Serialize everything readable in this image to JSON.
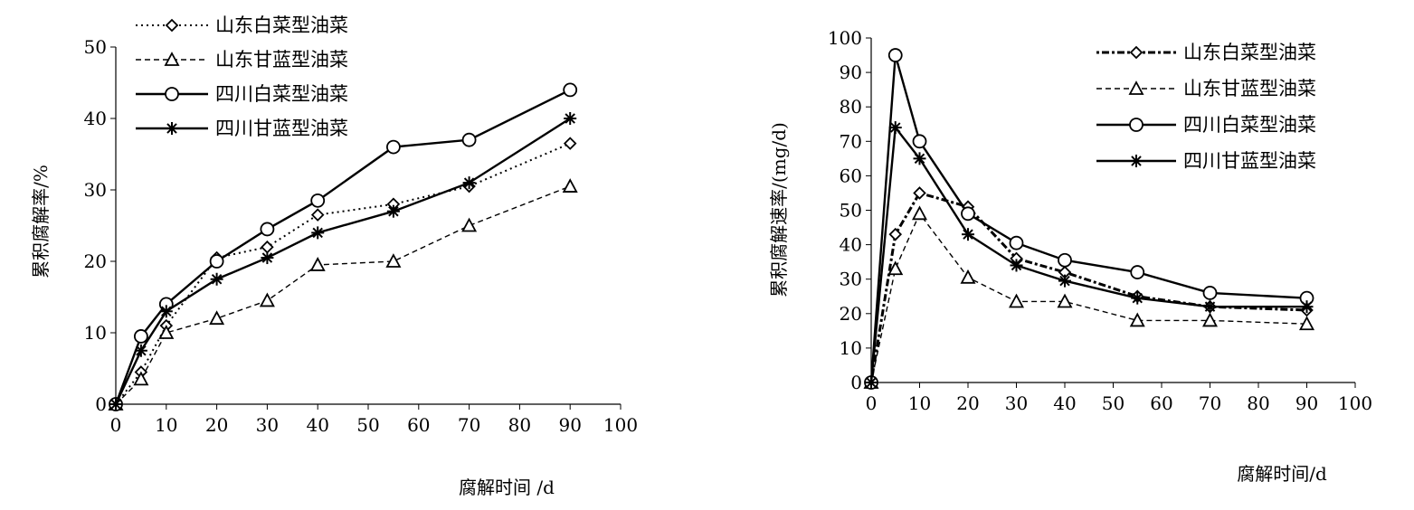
{
  "chart_data": [
    {
      "type": "line",
      "title": "",
      "xlabel": "腐解时间 /d",
      "ylabel": "累积腐解率/%",
      "xlim": [
        0,
        100
      ],
      "ylim": [
        0,
        50
      ],
      "xticks": [
        0,
        10,
        20,
        30,
        40,
        50,
        60,
        70,
        80,
        90,
        100
      ],
      "yticks": [
        0,
        10,
        20,
        30,
        40,
        50
      ],
      "grid": false,
      "legend_position": "top-left",
      "x": [
        0,
        5,
        10,
        20,
        30,
        40,
        55,
        70,
        90
      ],
      "series": [
        {
          "name": "山东白菜型油菜",
          "marker": "diamond",
          "line": "dotted",
          "values": [
            0,
            4.5,
            11,
            20.5,
            22,
            26.5,
            28,
            30.5,
            36.5
          ]
        },
        {
          "name": "山东甘蓝型油菜",
          "marker": "triangle",
          "line": "dashed-thin",
          "values": [
            0,
            3.5,
            10,
            12,
            14.5,
            19.5,
            20,
            25,
            30.5
          ]
        },
        {
          "name": "四川白菜型油菜",
          "marker": "circle",
          "line": "solid",
          "values": [
            0,
            9.5,
            14,
            20,
            24.5,
            28.5,
            36,
            37,
            44
          ]
        },
        {
          "name": "四川甘蓝型油菜",
          "marker": "asterisk",
          "line": "solid",
          "values": [
            0,
            7.5,
            13,
            17.5,
            20.5,
            24,
            27,
            31,
            40
          ]
        }
      ]
    },
    {
      "type": "line",
      "title": "",
      "xlabel": "腐解时间/d",
      "ylabel": "累积腐解速率/(mg/d)",
      "xlim": [
        0,
        100
      ],
      "ylim": [
        0,
        100
      ],
      "xticks": [
        0,
        10,
        20,
        30,
        40,
        50,
        60,
        70,
        80,
        90,
        100
      ],
      "yticks": [
        0,
        10,
        20,
        30,
        40,
        50,
        60,
        70,
        80,
        90,
        100
      ],
      "grid": false,
      "legend_position": "top-right",
      "x": [
        0,
        5,
        10,
        20,
        30,
        40,
        55,
        70,
        90
      ],
      "series": [
        {
          "name": "山东白菜型油菜",
          "marker": "diamond",
          "line": "dash-dot-bold",
          "values": [
            0,
            43,
            55,
            51,
            36,
            32,
            25,
            22,
            21
          ]
        },
        {
          "name": "山东甘蓝型油菜",
          "marker": "triangle",
          "line": "dashed-thin",
          "values": [
            0,
            33,
            49,
            30.5,
            23.5,
            23.5,
            18,
            18,
            17
          ]
        },
        {
          "name": "四川白菜型油菜",
          "marker": "circle",
          "line": "solid",
          "values": [
            0,
            95,
            70,
            49,
            40.5,
            35.5,
            32,
            26,
            24.5
          ]
        },
        {
          "name": "四川甘蓝型油菜",
          "marker": "asterisk",
          "line": "solid",
          "values": [
            0,
            74,
            65,
            43,
            34,
            29.5,
            24.5,
            22,
            22
          ]
        }
      ]
    }
  ]
}
